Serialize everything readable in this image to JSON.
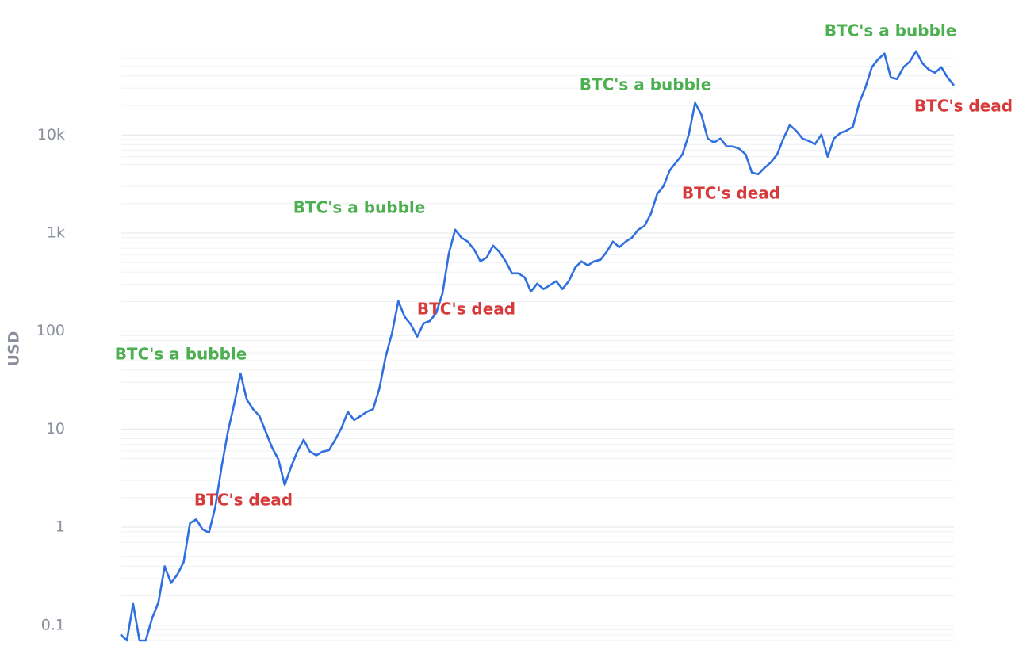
{
  "chart_data": {
    "type": "line",
    "y_label": "USD",
    "log_scale": true,
    "grid": true,
    "minor_grid": true,
    "color": "#2f6fdf",
    "ylim": [
      0.065,
      75000
    ],
    "yticks": [
      0.1,
      1,
      10,
      100,
      {
        "value": 1000,
        "label": "1k"
      },
      {
        "value": 10000,
        "label": "10k"
      }
    ],
    "values": [
      0.081,
      0.07,
      0.165,
      0.07,
      0.07,
      0.118,
      0.171,
      0.4,
      0.27,
      0.33,
      0.44,
      1.1,
      1.2,
      0.95,
      0.88,
      1.6,
      4.1,
      9.4,
      18,
      37,
      20,
      16,
      13.6,
      9.4,
      6.5,
      4.9,
      2.7,
      4.1,
      5.9,
      7.8,
      5.9,
      5.4,
      5.9,
      6.1,
      7.8,
      10.3,
      15,
      12.4,
      13.6,
      15,
      16,
      26,
      55,
      96,
      202,
      140,
      116,
      88,
      120,
      127,
      153,
      244,
      618,
      1080,
      898,
      818,
      679,
      514,
      564,
      745,
      643,
      514,
      388,
      388,
      354,
      253,
      305,
      268,
      294,
      323,
      268,
      323,
      443,
      514,
      468,
      514,
      533,
      643,
      818,
      718,
      818,
      898,
      1080,
      1186,
      1570,
      2500,
      3010,
      4370,
      5260,
      6340,
      10090,
      21240,
      16070,
      9200,
      8380,
      9200,
      7640,
      7640,
      7230,
      6340,
      4130,
      3980,
      4620,
      5260,
      6340,
      9200,
      12620,
      11070,
      9200,
      8690,
      8070,
      10090,
      6000,
      9200,
      10470,
      11070,
      12160,
      21240,
      30800,
      49100,
      59200,
      67400,
      38500,
      37200,
      49100,
      56000,
      71300,
      53800,
      46400,
      43100,
      49100,
      38500,
      32000
    ],
    "annotations": [
      {
        "text": "BTC's a bubble",
        "color": "#4caf50"
      },
      {
        "text": "BTC's dead",
        "color": "#d63a3a"
      },
      {
        "text": "BTC's a bubble",
        "color": "#4caf50"
      },
      {
        "text": "BTC's dead",
        "color": "#d63a3a"
      },
      {
        "text": "BTC's a bubble",
        "color": "#4caf50"
      },
      {
        "text": "BTC's dead",
        "color": "#d63a3a"
      },
      {
        "text": "BTC's a bubble",
        "color": "#4caf50"
      },
      {
        "text": "BTC's dead",
        "color": "#d63a3a"
      }
    ]
  }
}
